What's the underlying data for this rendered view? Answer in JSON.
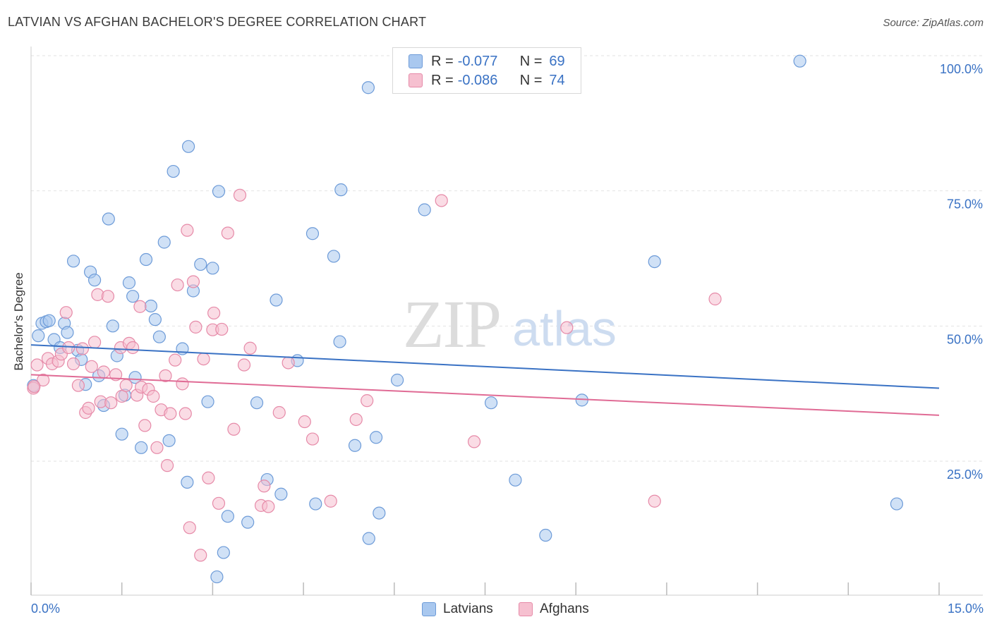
{
  "title": "LATVIAN VS AFGHAN BACHELOR'S DEGREE CORRELATION CHART",
  "source": "Source: ZipAtlas.com",
  "watermark": {
    "zip": "ZIP",
    "atlas": "atlas"
  },
  "legend": {
    "r_label": "R =",
    "n_label": "N =",
    "rows": [
      {
        "r": "-0.077",
        "n": "69",
        "color": "#a9c8ef",
        "border": "#6d9bd8"
      },
      {
        "r": "-0.086",
        "n": "74",
        "color": "#f6c0d0",
        "border": "#e68aa8"
      }
    ]
  },
  "bottom_legend": [
    {
      "label": "Latvians",
      "color": "#a9c8ef",
      "border": "#6d9bd8"
    },
    {
      "label": "Afghans",
      "color": "#f6c0d0",
      "border": "#e68aa8"
    }
  ],
  "colors": {
    "blue_line": "#3a72c4",
    "pink_line": "#e06b95",
    "tick_text": "#3a72c4",
    "grid": "#e2e2e2"
  },
  "chart_data": {
    "type": "scatter",
    "title": "LATVIAN VS AFGHAN BACHELOR'S DEGREE CORRELATION CHART",
    "xlabel": "",
    "ylabel": "Bachelor's Degree",
    "xlim": [
      0,
      15
    ],
    "ylim": [
      0,
      102
    ],
    "x_tick_labels": [
      "0.0%",
      "15.0%"
    ],
    "y_ticks": [
      25,
      50,
      75,
      100
    ],
    "y_tick_labels": [
      "25.0%",
      "50.0%",
      "75.0%",
      "100.0%"
    ],
    "grid": true,
    "series": [
      {
        "name": "Latvians",
        "color": "#a9c8ef",
        "stroke": "#6d9bd8",
        "trend": {
          "x": [
            0,
            15
          ],
          "y": [
            46.5,
            38.5
          ]
        },
        "points": [
          [
            0.04,
            39.0
          ],
          [
            0.12,
            48.2
          ],
          [
            0.18,
            50.5
          ],
          [
            0.25,
            50.8
          ],
          [
            0.3,
            51.0
          ],
          [
            0.38,
            47.5
          ],
          [
            0.48,
            46.0
          ],
          [
            0.55,
            50.5
          ],
          [
            0.6,
            48.8
          ],
          [
            0.7,
            62.0
          ],
          [
            0.77,
            45.5
          ],
          [
            0.83,
            43.8
          ],
          [
            0.9,
            39.2
          ],
          [
            0.98,
            60.0
          ],
          [
            1.05,
            58.5
          ],
          [
            1.12,
            40.8
          ],
          [
            1.2,
            35.3
          ],
          [
            1.28,
            69.8
          ],
          [
            1.35,
            50.0
          ],
          [
            1.42,
            44.5
          ],
          [
            1.5,
            30.0
          ],
          [
            1.55,
            37.2
          ],
          [
            1.62,
            58.0
          ],
          [
            1.68,
            55.5
          ],
          [
            1.72,
            40.5
          ],
          [
            1.82,
            27.5
          ],
          [
            1.9,
            62.3
          ],
          [
            1.98,
            53.7
          ],
          [
            2.05,
            51.2
          ],
          [
            2.12,
            48.0
          ],
          [
            2.2,
            65.5
          ],
          [
            2.28,
            28.8
          ],
          [
            2.35,
            78.6
          ],
          [
            2.5,
            45.8
          ],
          [
            2.58,
            21.1
          ],
          [
            2.6,
            83.2
          ],
          [
            2.68,
            56.5
          ],
          [
            2.8,
            61.4
          ],
          [
            2.92,
            36.0
          ],
          [
            3.0,
            60.7
          ],
          [
            3.07,
            3.6
          ],
          [
            3.1,
            74.9
          ],
          [
            3.18,
            8.1
          ],
          [
            3.25,
            14.8
          ],
          [
            3.58,
            13.7
          ],
          [
            3.73,
            35.8
          ],
          [
            3.9,
            21.6
          ],
          [
            4.05,
            54.8
          ],
          [
            4.13,
            18.9
          ],
          [
            4.4,
            43.6
          ],
          [
            4.65,
            67.1
          ],
          [
            4.7,
            17.1
          ],
          [
            5.0,
            62.9
          ],
          [
            5.1,
            47.1
          ],
          [
            5.12,
            75.2
          ],
          [
            5.35,
            27.9
          ],
          [
            5.57,
            94.1
          ],
          [
            5.58,
            10.7
          ],
          [
            5.7,
            29.4
          ],
          [
            5.75,
            15.4
          ],
          [
            6.05,
            40.0
          ],
          [
            6.5,
            71.5
          ],
          [
            7.6,
            35.8
          ],
          [
            8.0,
            21.5
          ],
          [
            8.5,
            11.3
          ],
          [
            9.1,
            36.3
          ],
          [
            10.3,
            61.9
          ],
          [
            12.7,
            99.0
          ],
          [
            14.3,
            17.1
          ]
        ]
      },
      {
        "name": "Afghans",
        "color": "#f6c0d0",
        "stroke": "#e68aa8",
        "trend": {
          "x": [
            0,
            15
          ],
          "y": [
            41.0,
            33.5
          ]
        },
        "points": [
          [
            0.04,
            38.5
          ],
          [
            0.1,
            42.8
          ],
          [
            0.2,
            40.0
          ],
          [
            0.28,
            44.0
          ],
          [
            0.35,
            43.0
          ],
          [
            0.45,
            43.5
          ],
          [
            0.5,
            44.8
          ],
          [
            0.58,
            52.5
          ],
          [
            0.62,
            46.0
          ],
          [
            0.7,
            43.0
          ],
          [
            0.78,
            39.0
          ],
          [
            0.85,
            45.8
          ],
          [
            0.9,
            34.0
          ],
          [
            0.95,
            34.8
          ],
          [
            1.0,
            42.5
          ],
          [
            1.05,
            47.0
          ],
          [
            1.1,
            55.8
          ],
          [
            1.15,
            36.0
          ],
          [
            1.2,
            41.5
          ],
          [
            1.27,
            55.5
          ],
          [
            1.32,
            35.8
          ],
          [
            1.4,
            41.0
          ],
          [
            1.48,
            46.0
          ],
          [
            1.5,
            37.0
          ],
          [
            1.57,
            39.0
          ],
          [
            1.62,
            46.8
          ],
          [
            1.68,
            46.0
          ],
          [
            1.75,
            37.2
          ],
          [
            1.8,
            53.6
          ],
          [
            1.82,
            38.7
          ],
          [
            1.88,
            31.6
          ],
          [
            1.94,
            38.3
          ],
          [
            2.02,
            37.0
          ],
          [
            2.08,
            27.5
          ],
          [
            2.15,
            34.5
          ],
          [
            2.22,
            40.8
          ],
          [
            2.25,
            24.2
          ],
          [
            2.3,
            33.8
          ],
          [
            2.38,
            43.7
          ],
          [
            2.42,
            57.6
          ],
          [
            2.5,
            39.3
          ],
          [
            2.55,
            33.8
          ],
          [
            2.58,
            67.7
          ],
          [
            2.62,
            12.7
          ],
          [
            2.68,
            58.2
          ],
          [
            2.72,
            49.8
          ],
          [
            2.8,
            7.6
          ],
          [
            2.85,
            43.9
          ],
          [
            2.93,
            21.9
          ],
          [
            3.0,
            49.3
          ],
          [
            3.02,
            52.4
          ],
          [
            3.1,
            17.2
          ],
          [
            3.15,
            49.4
          ],
          [
            3.25,
            67.2
          ],
          [
            3.35,
            30.9
          ],
          [
            3.45,
            74.2
          ],
          [
            3.52,
            42.8
          ],
          [
            3.62,
            45.9
          ],
          [
            3.8,
            16.8
          ],
          [
            3.85,
            20.4
          ],
          [
            3.92,
            16.6
          ],
          [
            4.1,
            34.0
          ],
          [
            4.25,
            43.2
          ],
          [
            4.52,
            32.3
          ],
          [
            4.65,
            29.1
          ],
          [
            4.95,
            17.6
          ],
          [
            5.37,
            32.7
          ],
          [
            5.55,
            36.2
          ],
          [
            6.78,
            73.2
          ],
          [
            7.32,
            28.6
          ],
          [
            8.85,
            49.7
          ],
          [
            10.3,
            17.6
          ],
          [
            11.3,
            55.0
          ],
          [
            0.05,
            38.8
          ]
        ]
      }
    ]
  }
}
